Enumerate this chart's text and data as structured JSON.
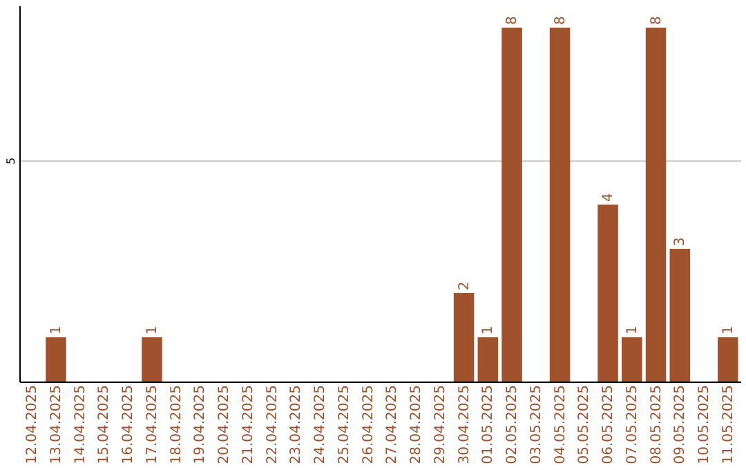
{
  "chart_data": {
    "type": "bar",
    "categories": [
      "12.04.2025",
      "13.04.2025",
      "14.04.2025",
      "15.04.2025",
      "16.04.2025",
      "17.04.2025",
      "18.04.2025",
      "19.04.2025",
      "20.04.2025",
      "21.04.2025",
      "22.04.2025",
      "23.04.2025",
      "24.04.2025",
      "25.04.2025",
      "26.04.2025",
      "27.04.2025",
      "28.04.2025",
      "29.04.2025",
      "30.04.2025",
      "01.05.2025",
      "02.05.2025",
      "03.05.2025",
      "04.05.2025",
      "05.05.2025",
      "06.05.2025",
      "07.05.2025",
      "08.05.2025",
      "09.05.2025",
      "10.05.2025",
      "11.05.2025"
    ],
    "values": [
      0,
      1,
      0,
      0,
      0,
      1,
      0,
      0,
      0,
      0,
      0,
      0,
      0,
      0,
      0,
      0,
      0,
      0,
      2,
      1,
      8,
      0,
      8,
      0,
      4,
      1,
      8,
      3,
      0,
      1
    ],
    "color": "#a0522d",
    "value_labels": [
      null,
      "1",
      null,
      null,
      null,
      "1",
      null,
      null,
      null,
      null,
      null,
      null,
      null,
      null,
      null,
      null,
      null,
      null,
      "2",
      "1",
      "8",
      null,
      "8",
      null,
      "4",
      "1",
      "8",
      "3",
      null,
      "1"
    ],
    "ylim": [
      0,
      8.5
    ],
    "yticks": [
      5
    ],
    "grid": "y"
  }
}
